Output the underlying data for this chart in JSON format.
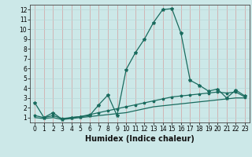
{
  "xlabel": "Humidex (Indice chaleur)",
  "bg_color": "#cce8e8",
  "plot_bg_color": "#cce8e8",
  "line_color": "#1a6b5e",
  "grid_color_v": "#d4a0a0",
  "grid_color_h": "#b8d8d8",
  "x_data": [
    0,
    1,
    2,
    3,
    4,
    5,
    6,
    7,
    8,
    9,
    10,
    11,
    12,
    13,
    14,
    15,
    16,
    17,
    18,
    19,
    20,
    21,
    22,
    23
  ],
  "line1_y": [
    2.5,
    1.0,
    1.5,
    0.8,
    1.0,
    1.1,
    1.2,
    2.3,
    3.3,
    1.2,
    5.9,
    7.6,
    9.0,
    10.7,
    12.0,
    12.1,
    9.6,
    4.8,
    4.3,
    3.7,
    3.9,
    3.0,
    3.8,
    3.2
  ],
  "line2_y": [
    1.2,
    1.0,
    1.2,
    0.9,
    1.0,
    1.1,
    1.3,
    1.5,
    1.7,
    1.9,
    2.1,
    2.3,
    2.5,
    2.7,
    2.9,
    3.1,
    3.2,
    3.3,
    3.4,
    3.5,
    3.6,
    3.5,
    3.6,
    3.1
  ],
  "line3_y": [
    1.0,
    0.9,
    1.0,
    0.8,
    0.9,
    1.0,
    1.1,
    1.2,
    1.3,
    1.4,
    1.5,
    1.7,
    1.9,
    2.1,
    2.2,
    2.3,
    2.4,
    2.5,
    2.6,
    2.7,
    2.8,
    2.9,
    3.0,
    3.0
  ],
  "xlim": [
    -0.5,
    23.5
  ],
  "ylim": [
    0.5,
    12.5
  ],
  "yticks": [
    1,
    2,
    3,
    4,
    5,
    6,
    7,
    8,
    9,
    10,
    11,
    12
  ],
  "xticks": [
    0,
    1,
    2,
    3,
    4,
    5,
    6,
    7,
    8,
    9,
    10,
    11,
    12,
    13,
    14,
    15,
    16,
    17,
    18,
    19,
    20,
    21,
    22,
    23
  ],
  "tick_fontsize": 5.5,
  "xlabel_fontsize": 7.0,
  "xlabel_fontweight": "bold"
}
